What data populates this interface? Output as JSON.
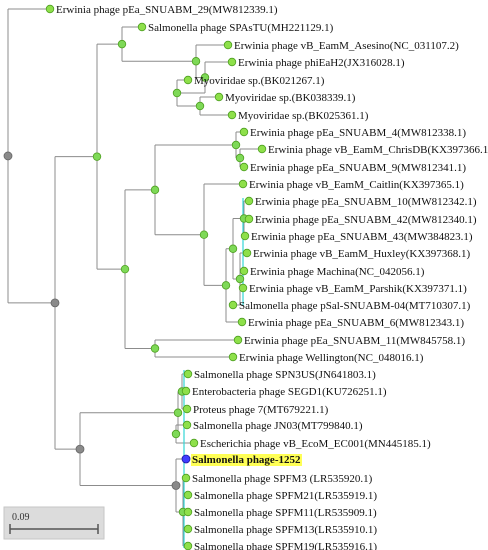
{
  "tree": {
    "leaves": [
      {
        "label": "Erwinia phage pEa_SNUABM_29(MW812339.1)"
      },
      {
        "label": "Salmonella phage SPAsTU(MH221129.1)"
      },
      {
        "label": "Erwinia phage vB_EamM_Asesino(NC_031107.2)"
      },
      {
        "label": "Erwinia phage phiEaH2(JX316028.1)"
      },
      {
        "label": "Myoviridae sp.(BK021267.1)"
      },
      {
        "label": "Myoviridae sp.(BK038339.1)"
      },
      {
        "label": "Myoviridae sp.(BK025361.1)"
      },
      {
        "label": "Erwinia phage pEa_SNUABM_4(MW812338.1)"
      },
      {
        "label": "Erwinia phage vB_EamM_ChrisDB(KX397366.1)"
      },
      {
        "label": "Erwinia phage pEa_SNUABM_9(MW812341.1)"
      },
      {
        "label": "Erwinia phage vB_EamM_Caitlin(KX397365.1)"
      },
      {
        "label": "Erwinia phage pEa_SNUABM_10(MW812342.1)"
      },
      {
        "label": "Erwinia phage pEa_SNUABM_42(MW812340.1)"
      },
      {
        "label": "Erwinia phage pEa_SNUABM_43(MW384823.1)"
      },
      {
        "label": "Erwinia phage vB_EamM_Huxley(KX397368.1)"
      },
      {
        "label": "Erwinia phage Machina(NC_042056.1)"
      },
      {
        "label": "Erwinia phage vB_EamM_Parshik(KX397371.1)"
      },
      {
        "label": "Salmonella phage pSal-SNUABM-04(MT710307.1)"
      },
      {
        "label": "Erwinia phage pEa_SNUABM_6(MW812343.1)"
      },
      {
        "label": "Erwinia phage pEa_SNUABM_11(MW845758.1)"
      },
      {
        "label": "Erwinia phage Wellington(NC_048016.1)"
      },
      {
        "label": "Salmonella phage SPN3US(JN641803.1)"
      },
      {
        "label": "Enterobacteria phage SEGD1(KU726251.1)"
      },
      {
        "label": "Proteus phage 7(MT679221.1)"
      },
      {
        "label": "Salmonella phage JN03(MT799840.1)"
      },
      {
        "label": "Escherichia phage vB_EcoM_EC001(MN445185.1)"
      },
      {
        "label": "Salmonella phage-1252",
        "highlight": true
      },
      {
        "label": "Salmonella phage SPFM3 (LR535920.1)"
      },
      {
        "label": "Salmonella phage SPFM21(LR535919.1)"
      },
      {
        "label": "Salmonella phage SPFM11(LR535909.1)"
      },
      {
        "label": "Salmonella phage SPFM13(LR535910.1)"
      },
      {
        "label": "Salmonella phage SPFM19(LR535916.1)"
      }
    ]
  },
  "scale_bar": {
    "label": "0.09"
  },
  "colors": {
    "branch": "#8c8c8c",
    "leaf_node": "#8ee04a",
    "internal_node": "#7ed957",
    "root_node": "#8a8a8a",
    "query_node": "#3d3dff",
    "highlight_bg": "#ffff55",
    "cluster_line": "#33d6d6"
  }
}
